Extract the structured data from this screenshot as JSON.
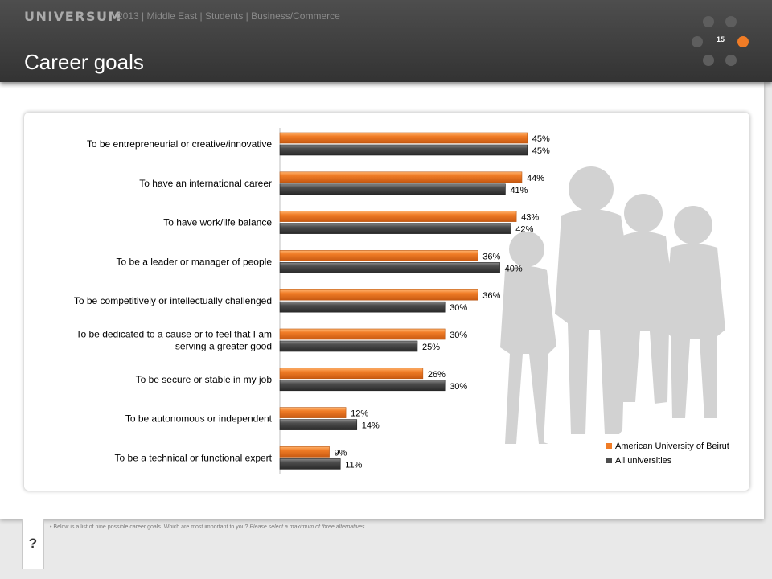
{
  "header": {
    "brand": "UNIVERSUM",
    "subtitle": "2013 | Middle East | Students | Business/Commerce",
    "title": "Career goals",
    "page_number": "15"
  },
  "colors": {
    "header_bg": "#3c3c3c",
    "accent_orange": "#f07c26",
    "series_gray": "#4d4d4d"
  },
  "chart_data": {
    "type": "bar",
    "orientation": "horizontal",
    "categories": [
      "To be entrepreneurial or creative/innovative",
      "To have an international career",
      "To have work/life balance",
      "To be a leader or manager of people",
      "To be competitively or intellectually challenged",
      "To be dedicated to a cause or to feel that I am serving a greater good",
      "To be secure or stable in my job",
      "To be autonomous or independent",
      "To be a technical or functional expert"
    ],
    "series": [
      {
        "name": "American University of Beirut",
        "color": "#f07c26",
        "values": [
          45,
          44,
          43,
          36,
          36,
          30,
          26,
          12,
          9
        ]
      },
      {
        "name": "All universities",
        "color": "#4d4d4d",
        "values": [
          45,
          41,
          42,
          40,
          30,
          25,
          30,
          14,
          11
        ]
      }
    ],
    "value_suffix": "%",
    "legend_position": "bottom-right",
    "grid": false
  },
  "footnote": {
    "bullet": "•",
    "question": "Below is a list of nine possible career goals. Which are most important to you?",
    "instruction": "Please select a maximum  of three alternatives."
  },
  "question_tab": "?"
}
